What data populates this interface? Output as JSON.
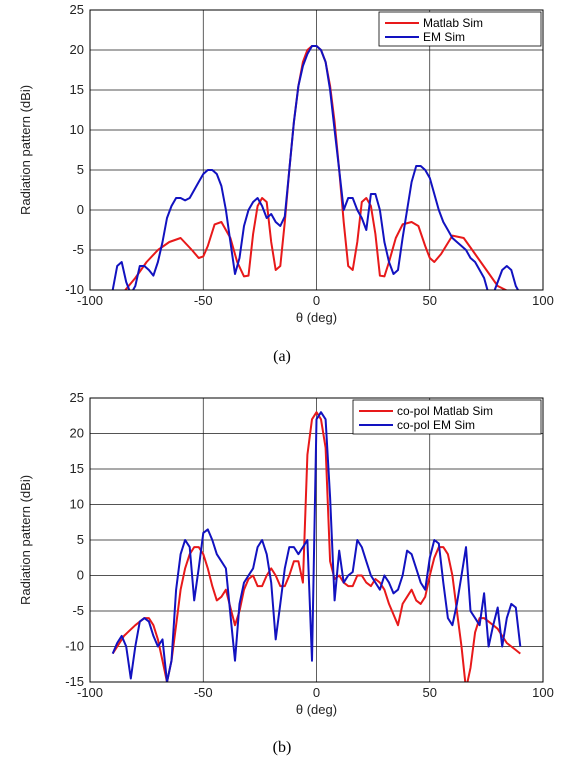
{
  "chart_data": [
    {
      "type": "line",
      "caption": "(a)",
      "xlabel": "θ (deg)",
      "ylabel": "Radiation pattern (dBi)",
      "xlim": [
        -100,
        100
      ],
      "ylim": [
        -10,
        25
      ],
      "xticks": [
        -100,
        -50,
        0,
        50,
        100
      ],
      "yticks": [
        -10,
        -5,
        0,
        5,
        10,
        15,
        20,
        25
      ],
      "grid": true,
      "legend_position": "top-right",
      "series": [
        {
          "name": "Matlab Sim",
          "color": "#e8191a",
          "x": [
            -90,
            -85,
            -80,
            -75,
            -70,
            -65,
            -60,
            -55,
            -52,
            -50,
            -48,
            -45,
            -42,
            -38,
            -35,
            -32,
            -30,
            -28,
            -26,
            -24,
            -22,
            -20,
            -18,
            -16,
            -14,
            -12,
            -10,
            -8,
            -6,
            -4,
            -2,
            0,
            2,
            4,
            6,
            8,
            10,
            12,
            14,
            16,
            18,
            20,
            22,
            24,
            26,
            28,
            30,
            32,
            35,
            38,
            42,
            45,
            48,
            50,
            52,
            55,
            60,
            65,
            70,
            75,
            80,
            85,
            90
          ],
          "y": [
            -10.5,
            -10.2,
            -8.5,
            -6.5,
            -5,
            -4,
            -3.5,
            -5,
            -6,
            -5.8,
            -4.5,
            -1.8,
            -1.5,
            -3.5,
            -6.5,
            -8.3,
            -8.2,
            -3,
            0.5,
            1.5,
            1,
            -4,
            -7.5,
            -7,
            -1.5,
            5,
            11,
            15.5,
            18.5,
            20,
            20.5,
            20.5,
            20,
            18.5,
            15.5,
            11,
            5,
            -1.5,
            -7,
            -7.5,
            -4,
            1,
            1.5,
            0.5,
            -3,
            -8.2,
            -8.3,
            -6.5,
            -3.5,
            -1.8,
            -1.5,
            -2,
            -4.5,
            -6,
            -6.5,
            -5.5,
            -3.2,
            -3.5,
            -5.5,
            -7.5,
            -9.5,
            -10.2,
            -10.5
          ]
        },
        {
          "name": "EM Sim",
          "color": "#1212c0",
          "x": [
            -90,
            -88,
            -86,
            -84,
            -82,
            -80,
            -78,
            -76,
            -74,
            -72,
            -70,
            -68,
            -66,
            -64,
            -62,
            -60,
            -58,
            -56,
            -54,
            -52,
            -50,
            -48,
            -46,
            -44,
            -42,
            -40,
            -38,
            -36,
            -34,
            -32,
            -30,
            -28,
            -26,
            -24,
            -22,
            -20,
            -18,
            -16,
            -14,
            -12,
            -10,
            -8,
            -6,
            -4,
            -2,
            0,
            2,
            4,
            6,
            8,
            10,
            12,
            14,
            16,
            18,
            20,
            22,
            24,
            26,
            28,
            30,
            32,
            34,
            36,
            38,
            40,
            42,
            44,
            46,
            48,
            50,
            52,
            54,
            56,
            58,
            60,
            62,
            64,
            66,
            68,
            70,
            72,
            74,
            76,
            78,
            80,
            82,
            84,
            86,
            88,
            90
          ],
          "y": [
            -10,
            -7,
            -6.5,
            -9,
            -10.5,
            -9.5,
            -7,
            -7,
            -7.5,
            -8.2,
            -6.5,
            -4,
            -1,
            0.5,
            1.5,
            1.5,
            1.2,
            1.5,
            2.5,
            3.5,
            4.5,
            5,
            5,
            4.5,
            3,
            0,
            -4,
            -8,
            -6,
            -2,
            0,
            1,
            1.5,
            0.5,
            -1,
            -0.5,
            -1.5,
            -2,
            -0.8,
            5,
            11,
            15.5,
            18,
            19.5,
            20.5,
            20.5,
            20,
            18.5,
            15,
            10,
            5,
            0,
            1.5,
            1.5,
            0,
            -1,
            -2.5,
            2,
            2,
            0,
            -4,
            -6.5,
            -8,
            -7.5,
            -3.5,
            0,
            3.5,
            5.5,
            5.5,
            5,
            4,
            2,
            0,
            -1.5,
            -2.5,
            -3.5,
            -4,
            -4.5,
            -5,
            -6,
            -6.5,
            -7.5,
            -8.5,
            -10.5,
            -10.5,
            -9,
            -7.5,
            -7,
            -7.5,
            -9.5,
            -10.5
          ]
        }
      ]
    },
    {
      "type": "line",
      "caption": "(b)",
      "xlabel": "θ (deg)",
      "ylabel": "Radiation pattern (dBi)",
      "xlim": [
        -100,
        100
      ],
      "ylim": [
        -15,
        25
      ],
      "xticks": [
        -100,
        -50,
        0,
        50,
        100
      ],
      "yticks": [
        -15,
        -10,
        -5,
        0,
        5,
        10,
        15,
        20,
        25
      ],
      "grid": true,
      "legend_position": "top-right",
      "series": [
        {
          "name": "co-pol Matlab Sim",
          "color": "#e8191a",
          "x": [
            -90,
            -85,
            -80,
            -76,
            -74,
            -72,
            -70,
            -68,
            -66,
            -64,
            -62,
            -60,
            -58,
            -56,
            -54,
            -52,
            -50,
            -48,
            -46,
            -44,
            -42,
            -40,
            -38,
            -36,
            -34,
            -32,
            -30,
            -28,
            -26,
            -24,
            -22,
            -20,
            -18,
            -16,
            -14,
            -12,
            -10,
            -8,
            -6,
            -4,
            -2,
            0,
            2,
            4,
            6,
            8,
            10,
            12,
            14,
            16,
            18,
            20,
            22,
            24,
            26,
            28,
            30,
            32,
            34,
            36,
            38,
            40,
            42,
            44,
            46,
            48,
            50,
            52,
            54,
            56,
            58,
            60,
            62,
            64,
            66,
            68,
            70,
            72,
            74,
            76,
            78,
            80,
            82,
            84,
            86,
            88,
            90
          ],
          "y": [
            -11,
            -8.5,
            -7,
            -6,
            -6,
            -7,
            -9,
            -12,
            -15,
            -12,
            -7,
            -2,
            1,
            3,
            4,
            4,
            3,
            1,
            -1.5,
            -3.5,
            -3,
            -2,
            -4.5,
            -7,
            -5,
            -2,
            -0.5,
            0,
            -1.5,
            -1.5,
            0,
            1,
            0,
            -1.5,
            -1.5,
            0,
            2,
            2,
            -1,
            17,
            22,
            23,
            22,
            18,
            2,
            -0.5,
            0,
            -1,
            -1.5,
            -1.5,
            0,
            0,
            -1,
            -1.5,
            -0.5,
            -1,
            -2,
            -4,
            -5.5,
            -7,
            -4,
            -3,
            -2,
            -3.5,
            -4,
            -3,
            0,
            2.5,
            4,
            4,
            3,
            0,
            -5,
            -10,
            -16,
            -13,
            -8,
            -6,
            -6,
            -6.5,
            -7,
            -7.5,
            -8.5,
            -9.5,
            -10,
            -10.5,
            -11
          ]
        },
        {
          "name": "co-pol EM Sim",
          "color": "#1212c0",
          "x": [
            -90,
            -88,
            -86,
            -84,
            -82,
            -80,
            -78,
            -76,
            -74,
            -72,
            -70,
            -68,
            -66,
            -64,
            -62,
            -60,
            -58,
            -56,
            -54,
            -52,
            -50,
            -48,
            -46,
            -44,
            -42,
            -40,
            -38,
            -36,
            -34,
            -32,
            -30,
            -28,
            -26,
            -24,
            -22,
            -20,
            -18,
            -16,
            -14,
            -12,
            -10,
            -8,
            -6,
            -4,
            -2,
            0,
            2,
            4,
            6,
            8,
            10,
            12,
            14,
            16,
            18,
            20,
            22,
            24,
            26,
            28,
            30,
            32,
            34,
            36,
            38,
            40,
            42,
            44,
            46,
            48,
            50,
            52,
            54,
            56,
            58,
            60,
            62,
            64,
            66,
            68,
            70,
            72,
            74,
            76,
            78,
            80,
            82,
            84,
            86,
            88,
            90
          ],
          "y": [
            -11,
            -9.5,
            -8.5,
            -10,
            -14.5,
            -10,
            -6.5,
            -6,
            -6.5,
            -8.5,
            -10,
            -9,
            -15,
            -12,
            -2,
            3,
            5,
            4,
            -3.5,
            1,
            6,
            6.5,
            5,
            3,
            2,
            1,
            -5.5,
            -12,
            -4,
            -1,
            0,
            1,
            4,
            5,
            3,
            -1,
            -9,
            -4,
            1,
            4,
            4,
            3,
            4,
            5,
            -12,
            22,
            23,
            22,
            11,
            -3.5,
            3.5,
            -1,
            0,
            0.5,
            5,
            4,
            2,
            0,
            -1,
            -2,
            0,
            -1,
            -2.5,
            -2,
            0,
            3.5,
            3,
            1,
            -1,
            -2,
            2.5,
            5,
            4.5,
            -1,
            -6,
            -7,
            -4,
            0,
            4,
            -5,
            -6,
            -7,
            -2.5,
            -10,
            -7,
            -4.5,
            -10,
            -6,
            -4,
            -4.5,
            -10
          ]
        }
      ]
    }
  ]
}
